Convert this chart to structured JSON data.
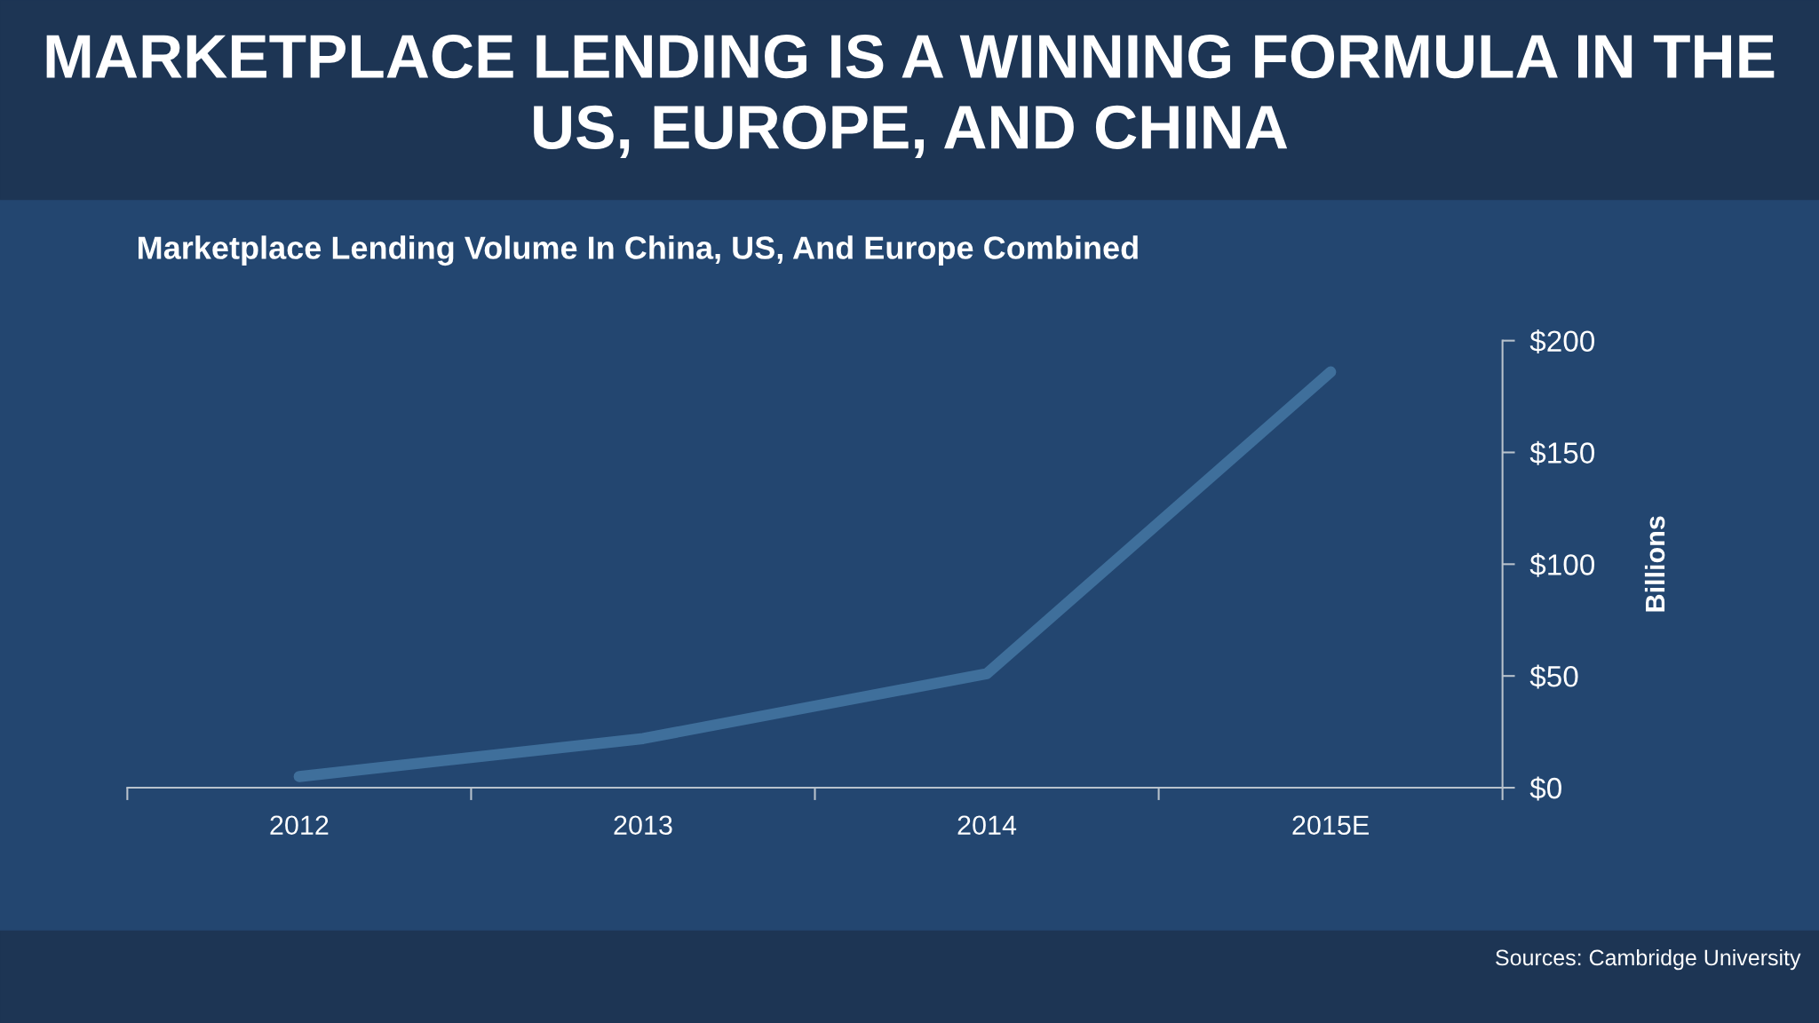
{
  "chart_data": {
    "type": "line",
    "title": "MARKETPLACE LENDING IS A WINNING FORMULA IN THE US, EUROPE, AND CHINA",
    "subtitle": "Marketplace Lending Volume In China, US, And Europe Combined",
    "ylabel": "Billions",
    "categories": [
      "2012",
      "2013",
      "2014",
      "2015E"
    ],
    "series": [
      {
        "color": "#3f6f9b",
        "values": [
          5,
          22,
          51,
          186
        ]
      }
    ],
    "ylim": [
      0,
      200
    ],
    "yticks": [
      {
        "value": 0,
        "label": "$0"
      },
      {
        "value": 50,
        "label": "$50"
      },
      {
        "value": 100,
        "label": "$100"
      },
      {
        "value": 150,
        "label": "$150"
      },
      {
        "value": 200,
        "label": "$200"
      }
    ],
    "grid": false,
    "legend": false,
    "line_style": "solid",
    "annotations": [
      "Sources: Cambridge University"
    ]
  }
}
